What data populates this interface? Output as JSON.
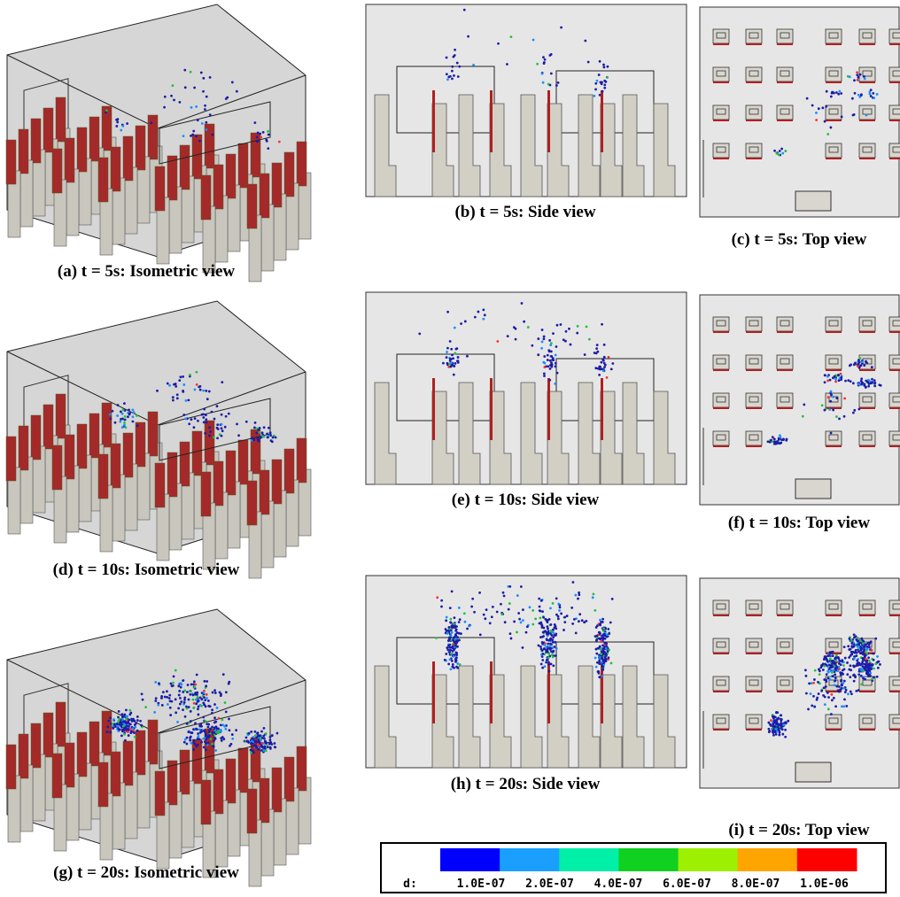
{
  "panels": [
    {
      "caption": "(a) t = 5s: Isometric view"
    },
    {
      "caption": "(b) t = 5s: Side view"
    },
    {
      "caption": "(c) t = 5s: Top view"
    },
    {
      "caption": "(d) t = 10s: Isometric view"
    },
    {
      "caption": "(e) t = 10s: Side view"
    },
    {
      "caption": "(f) t = 10s: Top view"
    },
    {
      "caption": "(g) t = 20s: Isometric view"
    },
    {
      "caption": "(h) t = 20s: Side view"
    },
    {
      "caption": "(i) t = 20s: Top view"
    }
  ],
  "colorbar": {
    "label": "d:",
    "ticks": [
      "1.0E-07",
      "2.0E-07",
      "4.0E-07",
      "6.0E-07",
      "8.0E-07",
      "1.0E-06"
    ],
    "colors": [
      "#0000ff",
      "#1a9fff",
      "#00f0a8",
      "#10d020",
      "#9cf000",
      "#ffa500",
      "#ff0000"
    ]
  }
}
